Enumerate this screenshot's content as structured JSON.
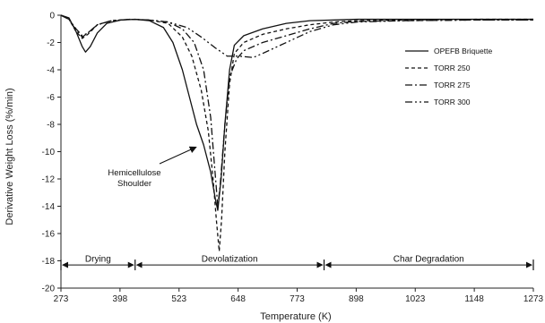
{
  "chart_data": {
    "type": "line",
    "xlabel": "Temperature (K)",
    "ylabel": "Derivative Weight Loss (%/min)",
    "xlim": [
      273,
      1273
    ],
    "ylim": [
      -20,
      0
    ],
    "x_ticks": [
      273,
      398,
      523,
      648,
      773,
      898,
      1023,
      1148,
      1273
    ],
    "y_ticks": [
      0,
      -2,
      -4,
      -6,
      -8,
      -10,
      -12,
      -14,
      -16,
      -18,
      -20
    ],
    "x_tick_labels": [
      "273",
      "398",
      "523",
      "648",
      "773",
      "898",
      "1023",
      "1148",
      "1273"
    ],
    "y_tick_labels": [
      "0",
      "-2",
      "-4",
      "-6",
      "-8",
      "-10",
      "-12",
      "-14",
      "-16",
      "-18",
      "-20"
    ],
    "grid": false,
    "legend_position": "top-right",
    "series": [
      {
        "name": "OPEFB Briquette",
        "dash": "solid",
        "points": [
          [
            273,
            0
          ],
          [
            290,
            -0.2
          ],
          [
            305,
            -1.2
          ],
          [
            318,
            -2.3
          ],
          [
            325,
            -2.7
          ],
          [
            335,
            -2.3
          ],
          [
            350,
            -1.3
          ],
          [
            370,
            -0.6
          ],
          [
            400,
            -0.35
          ],
          [
            430,
            -0.3
          ],
          [
            460,
            -0.4
          ],
          [
            490,
            -0.9
          ],
          [
            510,
            -2.0
          ],
          [
            530,
            -4.0
          ],
          [
            545,
            -6.0
          ],
          [
            560,
            -8.0
          ],
          [
            575,
            -9.5
          ],
          [
            590,
            -11.5
          ],
          [
            600,
            -13.5
          ],
          [
            605,
            -14.3
          ],
          [
            612,
            -12.0
          ],
          [
            620,
            -8.0
          ],
          [
            630,
            -4.0
          ],
          [
            640,
            -2.2
          ],
          [
            660,
            -1.5
          ],
          [
            700,
            -1.0
          ],
          [
            750,
            -0.6
          ],
          [
            800,
            -0.4
          ],
          [
            900,
            -0.3
          ],
          [
            1000,
            -0.3
          ],
          [
            1150,
            -0.3
          ],
          [
            1273,
            -0.3
          ]
        ]
      },
      {
        "name": "TORR 250",
        "dash": "dash",
        "points": [
          [
            273,
            0
          ],
          [
            290,
            -0.3
          ],
          [
            305,
            -1.2
          ],
          [
            318,
            -1.7
          ],
          [
            330,
            -1.4
          ],
          [
            350,
            -0.7
          ],
          [
            380,
            -0.4
          ],
          [
            420,
            -0.3
          ],
          [
            460,
            -0.35
          ],
          [
            500,
            -0.6
          ],
          [
            530,
            -1.6
          ],
          [
            550,
            -3.0
          ],
          [
            570,
            -5.5
          ],
          [
            585,
            -8.5
          ],
          [
            595,
            -12.0
          ],
          [
            602,
            -15.0
          ],
          [
            608,
            -17.3
          ],
          [
            613,
            -15.0
          ],
          [
            620,
            -10.0
          ],
          [
            630,
            -5.0
          ],
          [
            640,
            -2.8
          ],
          [
            660,
            -2.0
          ],
          [
            700,
            -1.4
          ],
          [
            750,
            -1.0
          ],
          [
            800,
            -0.7
          ],
          [
            850,
            -0.5
          ],
          [
            900,
            -0.4
          ],
          [
            1000,
            -0.35
          ],
          [
            1150,
            -0.3
          ],
          [
            1273,
            -0.3
          ]
        ]
      },
      {
        "name": "TORR 275",
        "dash": "dashdot",
        "points": [
          [
            273,
            0
          ],
          [
            290,
            -0.3
          ],
          [
            305,
            -1.1
          ],
          [
            318,
            -1.6
          ],
          [
            330,
            -1.3
          ],
          [
            350,
            -0.7
          ],
          [
            380,
            -0.4
          ],
          [
            420,
            -0.3
          ],
          [
            460,
            -0.35
          ],
          [
            500,
            -0.5
          ],
          [
            530,
            -1.0
          ],
          [
            555,
            -2.0
          ],
          [
            575,
            -4.0
          ],
          [
            590,
            -7.5
          ],
          [
            598,
            -11.0
          ],
          [
            605,
            -14.0
          ],
          [
            610,
            -12.5
          ],
          [
            620,
            -8.0
          ],
          [
            630,
            -4.5
          ],
          [
            645,
            -3.2
          ],
          [
            660,
            -2.6
          ],
          [
            700,
            -2.0
          ],
          [
            750,
            -1.5
          ],
          [
            800,
            -1.0
          ],
          [
            850,
            -0.6
          ],
          [
            900,
            -0.45
          ],
          [
            1000,
            -0.4
          ],
          [
            1150,
            -0.35
          ],
          [
            1273,
            -0.35
          ]
        ]
      },
      {
        "name": "TORR 300",
        "dash": "dashdotdot",
        "points": [
          [
            273,
            0
          ],
          [
            290,
            -0.3
          ],
          [
            305,
            -1.0
          ],
          [
            318,
            -1.5
          ],
          [
            330,
            -1.3
          ],
          [
            350,
            -0.7
          ],
          [
            380,
            -0.4
          ],
          [
            420,
            -0.3
          ],
          [
            460,
            -0.35
          ],
          [
            500,
            -0.5
          ],
          [
            540,
            -0.9
          ],
          [
            570,
            -1.6
          ],
          [
            600,
            -2.4
          ],
          [
            625,
            -3.0
          ],
          [
            650,
            -3.0
          ],
          [
            680,
            -3.1
          ],
          [
            700,
            -2.8
          ],
          [
            750,
            -2.0
          ],
          [
            800,
            -1.2
          ],
          [
            850,
            -0.7
          ],
          [
            900,
            -0.5
          ],
          [
            1000,
            -0.4
          ],
          [
            1150,
            -0.35
          ],
          [
            1273,
            -0.35
          ]
        ]
      }
    ],
    "annotation": {
      "lines": [
        "Hemicellulose",
        "Shoulder"
      ],
      "arrow_to": [
        565,
        -9.5
      ]
    },
    "regions": [
      {
        "label": "Drying",
        "from": 273,
        "to": 430
      },
      {
        "label": "Devolatization",
        "from": 430,
        "to": 830
      },
      {
        "label": "Char Degradation",
        "from": 830,
        "to": 1273
      }
    ],
    "regions_y": -18.3
  }
}
